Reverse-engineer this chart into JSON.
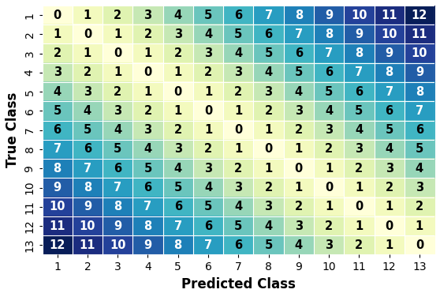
{
  "n_classes": 13,
  "xlabel": "Predicted Class",
  "ylabel": "True Class",
  "tick_labels": [
    "1",
    "2",
    "3",
    "4",
    "5",
    "6",
    "7",
    "8",
    "9",
    "10",
    "11",
    "12",
    "13"
  ],
  "colormap": "YlGnBu",
  "vmin": 0,
  "vmax": 12,
  "cell_fontsize": 10.5,
  "light_text_color": "white",
  "dark_text_color": "black",
  "xlabel_fontsize": 12,
  "ylabel_fontsize": 12,
  "tick_fontsize": 10,
  "fig_width": 5.58,
  "fig_height": 3.76,
  "dpi": 100,
  "luminance_threshold": 0.55
}
